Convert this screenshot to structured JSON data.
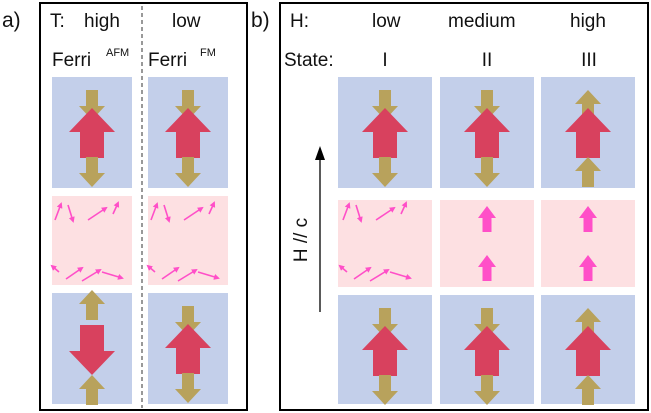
{
  "panel_a": {
    "label": "a)",
    "temperature": {
      "label": "T:",
      "high": "high",
      "low": "low"
    },
    "columns": [
      {
        "name": "Ferri",
        "superscript": "AFM"
      },
      {
        "name": "Ferri",
        "superscript": "FM"
      }
    ]
  },
  "panel_b": {
    "label": "b)",
    "field": {
      "label": "H:",
      "levels": [
        "low",
        "medium",
        "high"
      ]
    },
    "state": {
      "label": "State:",
      "values": [
        "I",
        "II",
        "III"
      ]
    },
    "axis_label": "H // c"
  }
}
